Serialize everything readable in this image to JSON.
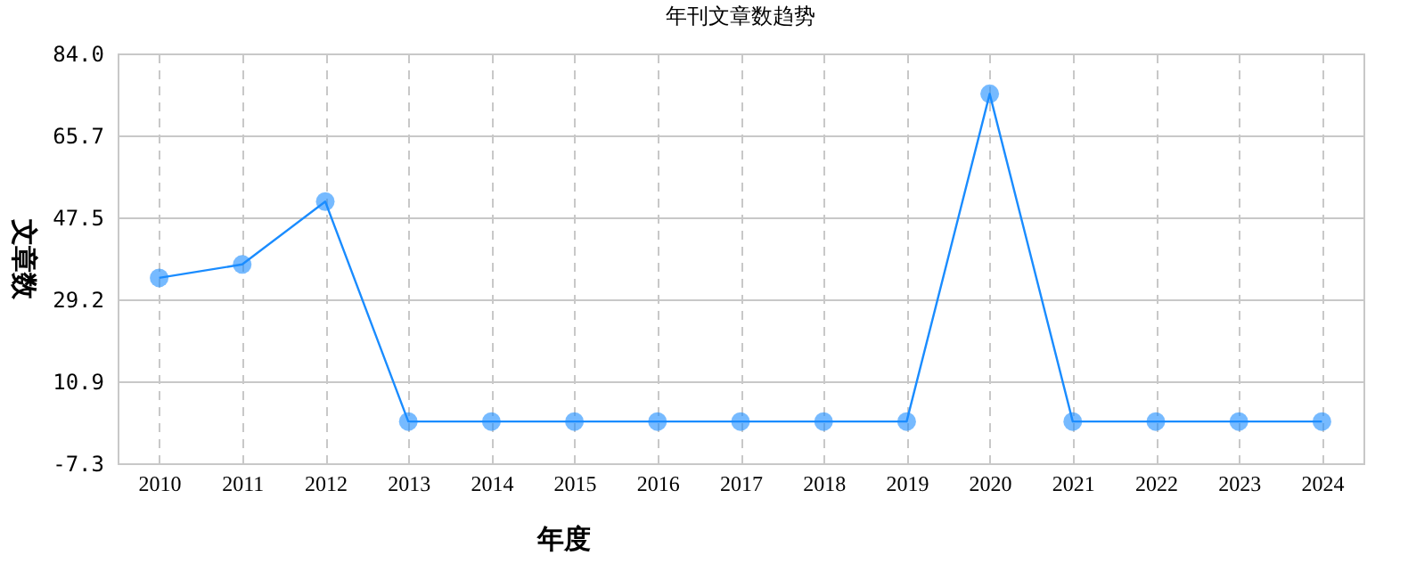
{
  "chart_data": {
    "type": "line",
    "title": "年刊文章数趋势",
    "xlabel": "年度",
    "ylabel": "文章数",
    "categories": [
      "2010",
      "2011",
      "2012",
      "2013",
      "2014",
      "2015",
      "2016",
      "2017",
      "2018",
      "2019",
      "2020",
      "2021",
      "2022",
      "2023",
      "2024"
    ],
    "series": [
      {
        "color": "#1a8cff",
        "values": [
          34,
          37,
          51,
          2,
          2,
          2,
          2,
          2,
          2,
          2,
          75,
          2,
          2,
          2,
          2
        ]
      }
    ],
    "ylim": [
      -7.3,
      84.0
    ],
    "yticks": [
      -7.3,
      10.9,
      29.2,
      47.5,
      65.7,
      {
        "value": 84,
        "label": "84.0"
      }
    ],
    "grid": true,
    "marker": "circle",
    "line_style": "solid"
  }
}
